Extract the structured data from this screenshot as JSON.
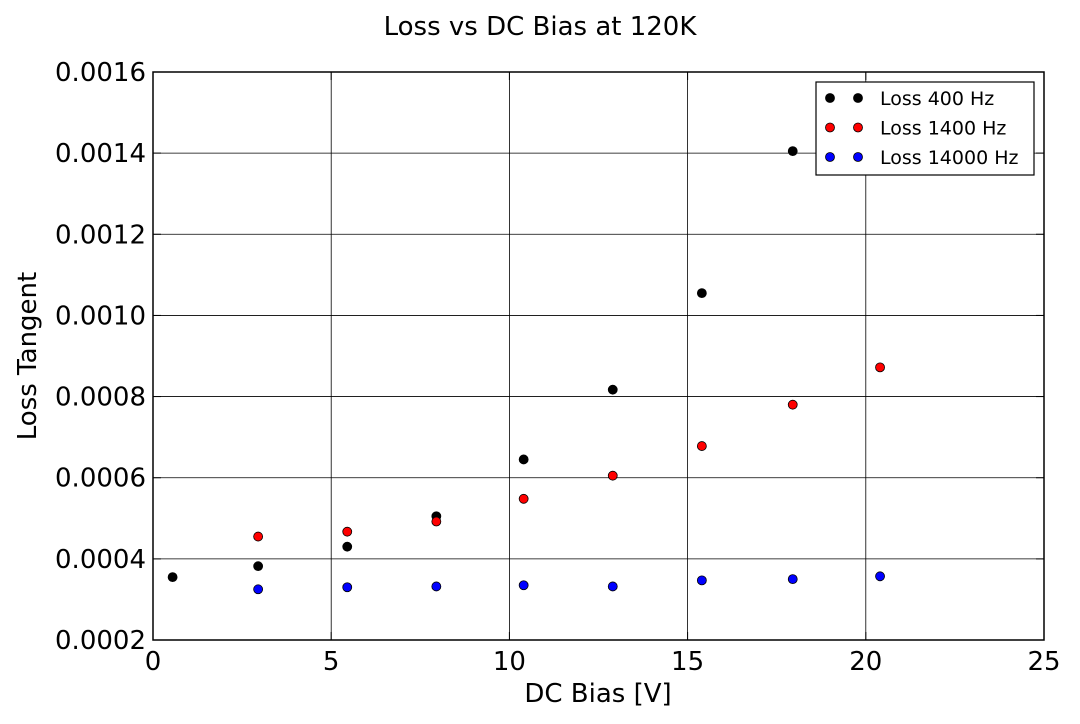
{
  "chart_data": {
    "type": "scatter",
    "title": "Loss vs DC Bias at 120K",
    "xlabel": "DC Bias [V]",
    "ylabel": "Loss Tangent",
    "xlim": [
      0,
      25
    ],
    "ylim": [
      0.0002,
      0.0016
    ],
    "xticks": [
      0,
      5,
      10,
      15,
      20,
      25
    ],
    "xtick_labels": [
      "0",
      "5",
      "10",
      "15",
      "20",
      "25"
    ],
    "yticks": [
      0.0002,
      0.0004,
      0.0006,
      0.0008,
      0.001,
      0.0012,
      0.0014,
      0.0016
    ],
    "ytick_labels": [
      "0.0002",
      "0.0004",
      "0.0006",
      "0.0008",
      "0.0010",
      "0.0012",
      "0.0014",
      "0.0016"
    ],
    "grid": true,
    "legend_position": "top-right",
    "series": [
      {
        "name": "Loss 400 Hz",
        "color": "#000000",
        "x": [
          0.55,
          2.95,
          5.45,
          7.95,
          10.4,
          12.9,
          15.4,
          17.95
        ],
        "y": [
          0.000355,
          0.000382,
          0.00043,
          0.000505,
          0.000645,
          0.000817,
          0.001055,
          0.001405
        ]
      },
      {
        "name": "Loss 1400 Hz",
        "color": "#ff0000",
        "x": [
          2.95,
          5.45,
          7.95,
          10.4,
          12.9,
          15.4,
          17.95,
          20.4
        ],
        "y": [
          0.000455,
          0.000467,
          0.000492,
          0.000548,
          0.000605,
          0.000678,
          0.00078,
          0.000872
        ]
      },
      {
        "name": "Loss 14000 Hz",
        "color": "#0000ff",
        "x": [
          2.95,
          5.45,
          7.95,
          10.4,
          12.9,
          15.4,
          17.95,
          20.4
        ],
        "y": [
          0.000325,
          0.00033,
          0.000332,
          0.000335,
          0.000332,
          0.000347,
          0.00035,
          0.000357
        ]
      }
    ]
  }
}
